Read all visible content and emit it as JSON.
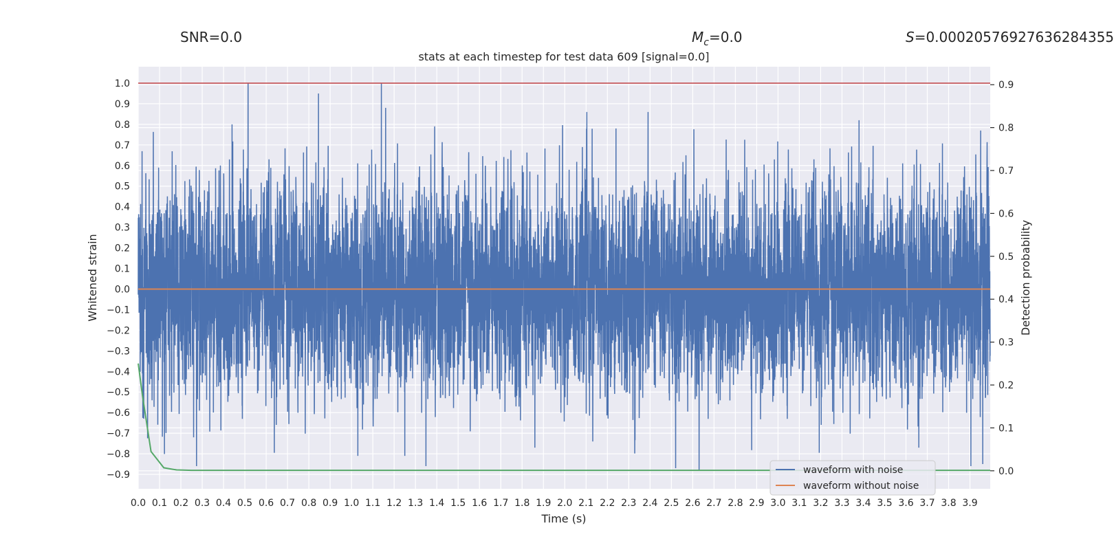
{
  "annotations": {
    "snr": "SNR=0.0",
    "mc_symbol": "M",
    "mc_sub": "c",
    "mc_value": "=0.0",
    "s_symbol": "S",
    "s_value": "=0.00020576927636284355"
  },
  "chart_data": {
    "type": "line",
    "title": "stats at each timestep for test data 609 [signal=0.0]",
    "xlabel": "Time (s)",
    "ylabel": "Whitened strain",
    "y2label": "Detection probability",
    "xlim": [
      0.0,
      3.995
    ],
    "ylim": [
      -0.97,
      1.08
    ],
    "y2lim": [
      -0.042,
      0.942
    ],
    "xticks": [
      "0.0",
      "0.1",
      "0.2",
      "0.3",
      "0.4",
      "0.5",
      "0.6",
      "0.7",
      "0.8",
      "0.9",
      "1.0",
      "1.1",
      "1.2",
      "1.3",
      "1.4",
      "1.5",
      "1.6",
      "1.7",
      "1.8",
      "1.9",
      "2.0",
      "2.1",
      "2.2",
      "2.3",
      "2.4",
      "2.5",
      "2.6",
      "2.7",
      "2.8",
      "2.9",
      "3.0",
      "3.1",
      "3.2",
      "3.3",
      "3.4",
      "3.5",
      "3.6",
      "3.7",
      "3.8",
      "3.9"
    ],
    "yticks": [
      "−0.9",
      "−0.8",
      "−0.7",
      "−0.6",
      "−0.5",
      "−0.4",
      "−0.3",
      "−0.2",
      "−0.1",
      "0.0",
      "0.1",
      "0.2",
      "0.3",
      "0.4",
      "0.5",
      "0.6",
      "0.7",
      "0.8",
      "0.9",
      "1.0"
    ],
    "y2ticks": [
      "0.0",
      "0.1",
      "0.2",
      "0.3",
      "0.4",
      "0.5",
      "0.6",
      "0.7",
      "0.8",
      "0.9"
    ],
    "threshold": {
      "axis": "left",
      "value": 1.0,
      "color": "#c44e52"
    },
    "series": [
      {
        "name": "waveform with noise",
        "axis": "left",
        "color": "#4c72b0",
        "kind": "noise",
        "sample_rate_hz": 2048,
        "duration_s": 3.995,
        "std_estimate": 0.24,
        "notable_peaks": [
          {
            "t": 0.515,
            "v": 1.0
          },
          {
            "t": 1.14,
            "v": 1.0
          },
          {
            "t": 1.16,
            "v": 0.88
          },
          {
            "t": 0.845,
            "v": 0.95
          },
          {
            "t": 0.44,
            "v": 0.8
          },
          {
            "t": 1.39,
            "v": 0.79
          },
          {
            "t": 2.24,
            "v": 0.78
          },
          {
            "t": 3.38,
            "v": 0.82
          },
          {
            "t": 3.95,
            "v": 0.77
          },
          {
            "t": 2.63,
            "v": -0.88
          },
          {
            "t": 2.52,
            "v": -0.87
          },
          {
            "t": 3.96,
            "v": -0.85
          },
          {
            "t": 1.03,
            "v": -0.81
          },
          {
            "t": 1.25,
            "v": -0.81
          },
          {
            "t": 1.86,
            "v": -0.77
          },
          {
            "t": 3.66,
            "v": -0.77
          },
          {
            "t": 0.26,
            "v": -0.72
          }
        ]
      },
      {
        "name": "waveform without noise",
        "axis": "left",
        "color": "#dd8452",
        "x": [
          0.0,
          3.995
        ],
        "y": [
          0.0,
          0.0
        ]
      },
      {
        "name": "detection probability",
        "axis": "right",
        "color": "#55a868",
        "x": [
          0.0,
          0.02,
          0.06,
          0.12,
          0.18,
          0.25,
          0.5,
          1.0,
          2.0,
          3.0,
          3.995
        ],
        "y": [
          0.25,
          0.175,
          0.045,
          0.007,
          0.002,
          0.001,
          0.001,
          0.001,
          0.001,
          0.001,
          0.001
        ]
      }
    ],
    "legend": {
      "position": "lower-right",
      "entries": [
        {
          "label": "waveform with noise",
          "color": "#4c72b0"
        },
        {
          "label": "waveform without noise",
          "color": "#dd8452"
        }
      ]
    },
    "grid": true,
    "style": {
      "axes_bg": "#eaeaf2",
      "grid_color": "#ffffff",
      "text_color": "#262626"
    }
  }
}
